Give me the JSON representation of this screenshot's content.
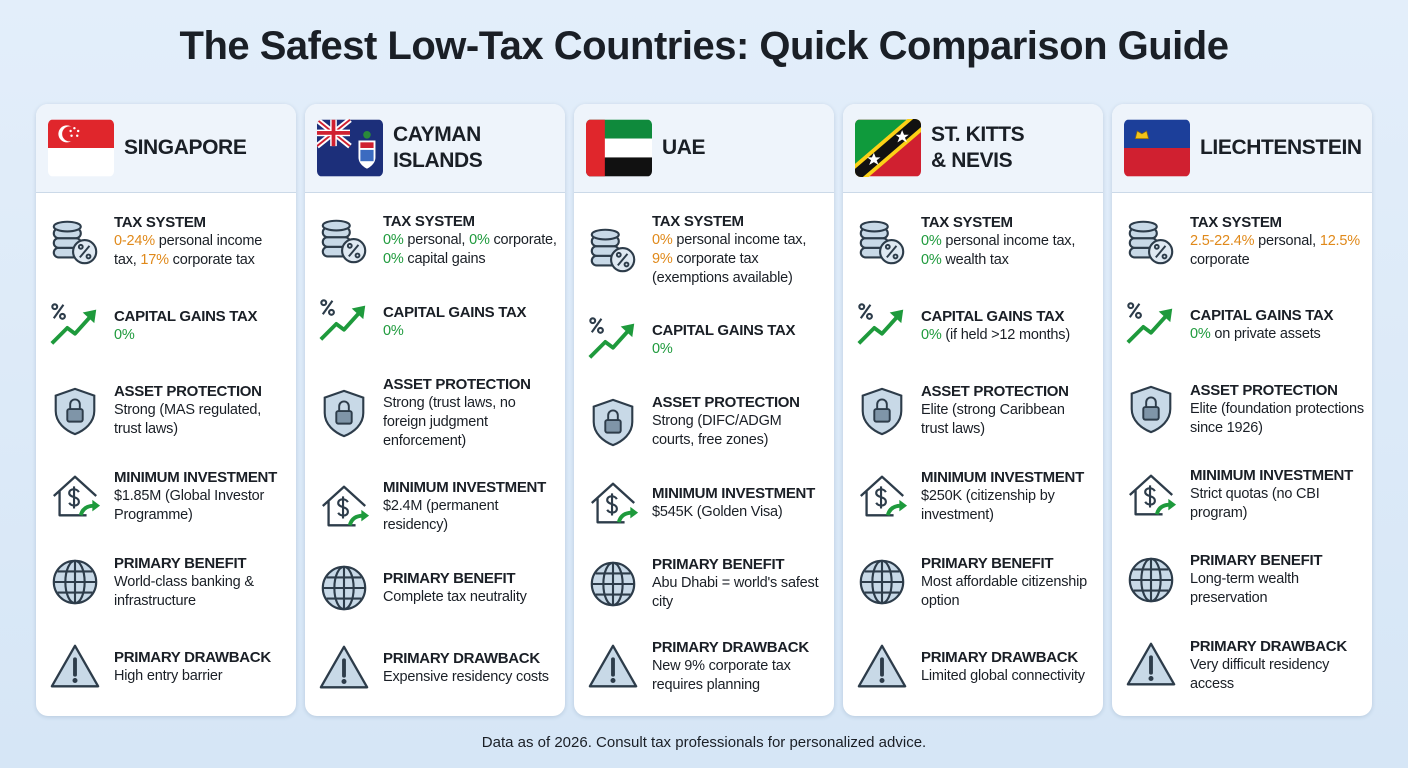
{
  "title": "The Safest Low-Tax Countries: Quick Comparison Guide",
  "countries": [
    {
      "name": "SINGAPORE",
      "rows": [
        {
          "label": "TAX SYSTEM",
          "value": [
            {
              "text": "0-24%",
              "color": "#e0891a"
            },
            " personal income tax, ",
            {
              "text": "17%",
              "color": "#e0891a"
            },
            " corporate tax"
          ]
        },
        {
          "label": "CAPITAL GAINS TAX",
          "value": [
            {
              "text": "0%",
              "color": "#1e9a3c"
            }
          ]
        },
        {
          "label": "ASSET PROTECTION",
          "value": [
            "Strong (MAS regulated, trust laws)"
          ]
        },
        {
          "label": "MINIMUM INVESTMENT",
          "value": [
            "$1.85M (Global Investor Programme)"
          ]
        },
        {
          "label": "PRIMARY BENEFIT",
          "value": [
            "World-class banking & infrastructure"
          ]
        },
        {
          "label": "PRIMARY DRAWBACK",
          "value": [
            "High entry barrier"
          ]
        }
      ]
    },
    {
      "name": "CAYMAN ISLANDS",
      "rows": [
        {
          "label": "TAX SYSTEM",
          "value": [
            {
              "text": "0%",
              "color": "#1e9a3c"
            },
            " personal, ",
            {
              "text": "0%",
              "color": "#1e9a3c"
            },
            " corporate, ",
            {
              "text": "0%",
              "color": "#1e9a3c"
            },
            " capital gains"
          ]
        },
        {
          "label": "CAPITAL GAINS TAX",
          "value": [
            {
              "text": "0%",
              "color": "#1e9a3c"
            }
          ]
        },
        {
          "label": "ASSET PROTECTION",
          "value": [
            "Strong (trust laws, no foreign judgment enforcement)"
          ]
        },
        {
          "label": "MINIMUM INVESTMENT",
          "value": [
            "$2.4M (permanent residency)"
          ]
        },
        {
          "label": "PRIMARY BENEFIT",
          "value": [
            "Complete tax neutrality"
          ]
        },
        {
          "label": "PRIMARY DRAWBACK",
          "value": [
            "Expensive residency costs"
          ]
        }
      ]
    },
    {
      "name": "UAE",
      "rows": [
        {
          "label": "TAX SYSTEM",
          "value": [
            {
              "text": "0%",
              "color": "#e0891a"
            },
            " personal income tax, ",
            {
              "text": "9%",
              "color": "#e0891a"
            },
            " corporate tax (exemptions available)"
          ]
        },
        {
          "label": "CAPITAL GAINS TAX",
          "value": [
            {
              "text": "0%",
              "color": "#1e9a3c"
            }
          ]
        },
        {
          "label": "ASSET PROTECTION",
          "value": [
            "Strong (DIFC/ADGM courts, free zones)"
          ]
        },
        {
          "label": "MINIMUM INVESTMENT",
          "value": [
            "$545K (Golden Visa)"
          ]
        },
        {
          "label": "PRIMARY BENEFIT",
          "value": [
            "Abu Dhabi = world's safest city"
          ]
        },
        {
          "label": "PRIMARY DRAWBACK",
          "value": [
            "New 9% corporate tax requires planning"
          ]
        }
      ]
    },
    {
      "name": "ST. KITTS & NEVIS",
      "rows": [
        {
          "label": "TAX SYSTEM",
          "value": [
            {
              "text": "0%",
              "color": "#1e9a3c"
            },
            " personal income tax, ",
            {
              "text": "0%",
              "color": "#1e9a3c"
            },
            " wealth tax"
          ]
        },
        {
          "label": "CAPITAL GAINS TAX",
          "value": [
            {
              "text": "0%",
              "color": "#1e9a3c"
            },
            " (if held >12 months)"
          ]
        },
        {
          "label": "ASSET PROTECTION",
          "value": [
            "Elite (strong Caribbean trust laws)"
          ]
        },
        {
          "label": "MINIMUM INVESTMENT",
          "value": [
            "$250K (citizenship by investment)"
          ]
        },
        {
          "label": "PRIMARY BENEFIT",
          "value": [
            "Most affordable citizenship option"
          ]
        },
        {
          "label": "PRIMARY DRAWBACK",
          "value": [
            "Limited global connectivity"
          ]
        }
      ]
    },
    {
      "name": "LIECHTENSTEIN",
      "rows": [
        {
          "label": "TAX SYSTEM",
          "value": [
            {
              "text": "2.5-22.4%",
              "color": "#e0891a"
            },
            " personal, ",
            {
              "text": "12.5%",
              "color": "#e0891a"
            },
            " corporate"
          ]
        },
        {
          "label": "CAPITAL GAINS TAX",
          "value": [
            {
              "text": "0%",
              "color": "#1e9a3c"
            },
            " on private assets"
          ]
        },
        {
          "label": "ASSET PROTECTION",
          "value": [
            "Elite (foundation protections since 1926)"
          ]
        },
        {
          "label": "MINIMUM INVESTMENT",
          "value": [
            "Strict quotas (no CBI program)"
          ]
        },
        {
          "label": "PRIMARY BENEFIT",
          "value": [
            "Long-term wealth preservation"
          ]
        },
        {
          "label": "PRIMARY DRAWBACK",
          "value": [
            "Very difficult residency access"
          ]
        }
      ]
    }
  ],
  "footer": "Data as of 2026. Consult tax professionals for personalized advice."
}
